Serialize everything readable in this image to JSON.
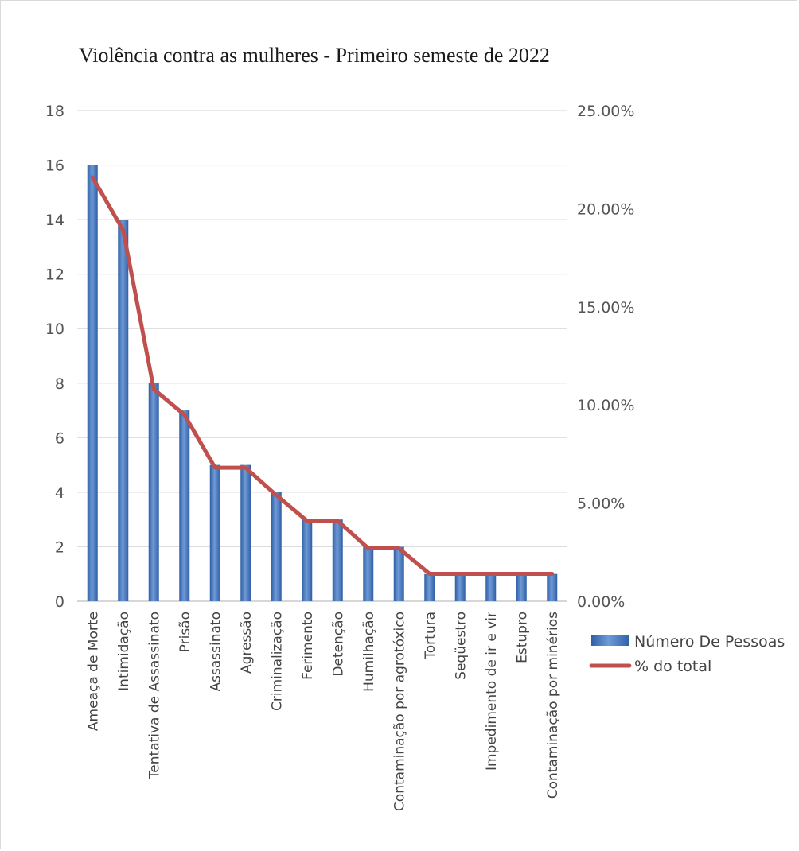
{
  "chart_data": {
    "type": "bar",
    "title": "Violência contra as mulheres - Primeiro semeste de 2022",
    "categories": [
      "Ameaça de Morte",
      "Intimidação",
      "Tentativa de Assassinato",
      "Prisão",
      "Assassinato",
      "Agressão",
      "Criminalização",
      "Ferimento",
      "Detenção",
      "Humilhação",
      "Contaminação por agrotóxico",
      "Tortura",
      "Seqüestro",
      "Impedimento de ir e vir",
      "Estupro",
      "Contaminação por minérios"
    ],
    "series": [
      {
        "name": "Número De Pessoas",
        "type": "bar",
        "axis": "left",
        "color": "#4a7fc4",
        "values": [
          16,
          14,
          8,
          7,
          5,
          5,
          4,
          3,
          3,
          2,
          2,
          1,
          1,
          1,
          1,
          1
        ]
      },
      {
        "name": "% do total",
        "type": "line",
        "axis": "right",
        "color": "#c0504d",
        "values": [
          21.6,
          18.9,
          10.8,
          9.5,
          6.8,
          6.8,
          5.4,
          4.1,
          4.1,
          2.7,
          2.7,
          1.4,
          1.4,
          1.4,
          1.4,
          1.4
        ]
      }
    ],
    "y_left": {
      "min": 0,
      "max": 18,
      "ticks": [
        "0",
        "2",
        "4",
        "6",
        "8",
        "10",
        "12",
        "14",
        "16",
        "18"
      ]
    },
    "y_right": {
      "min": 0,
      "max": 25,
      "ticks": [
        "0.00%",
        "5.00%",
        "10.00%",
        "15.00%",
        "20.00%",
        "25.00%"
      ]
    },
    "grid": true,
    "legend_position": "right"
  }
}
